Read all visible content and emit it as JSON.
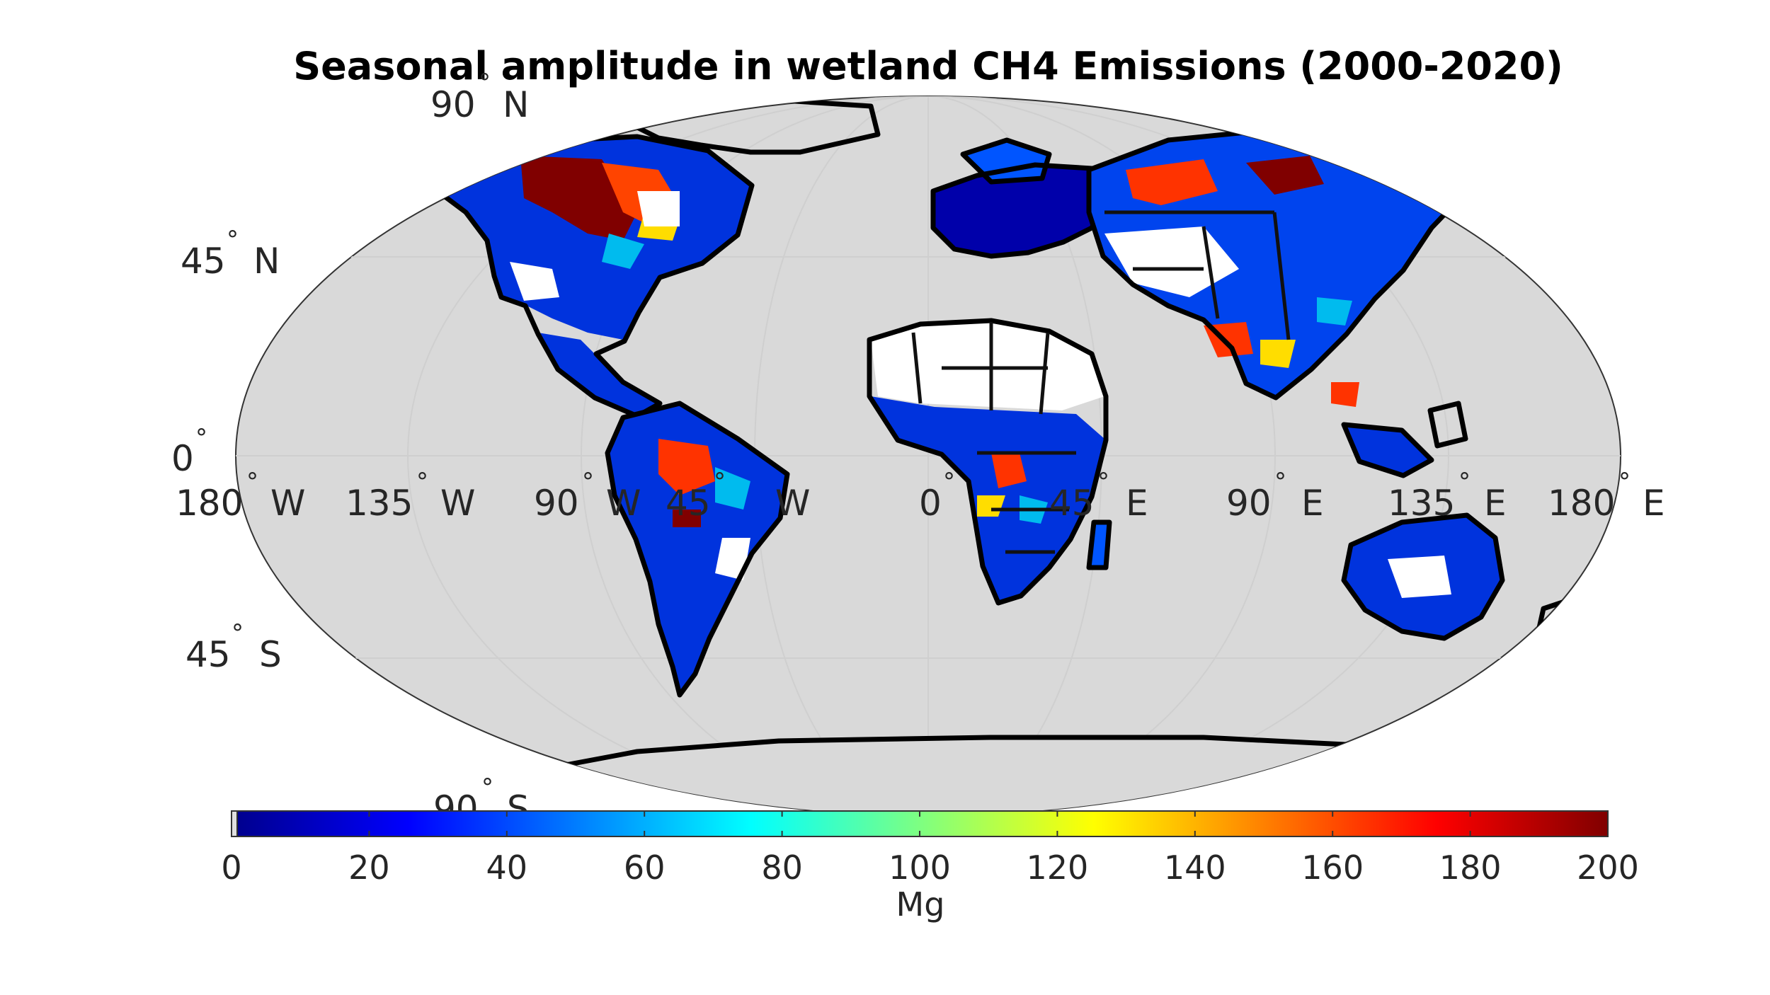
{
  "title": "Seasonal amplitude in wetland CH4 Emissions (2000-2020)",
  "projection": "robinson",
  "colors": {
    "ocean": "#d9d9d9",
    "land_low": "#00008f",
    "land_mid": "#0044ff",
    "high": "#ff2200",
    "max": "#800000",
    "coastline": "#000000"
  },
  "latitude_labels": [
    {
      "value": "90",
      "hemisphere": "N"
    },
    {
      "value": "45",
      "hemisphere": "N"
    },
    {
      "value": "0",
      "hemisphere": ""
    },
    {
      "value": "45",
      "hemisphere": "S"
    },
    {
      "value": "90",
      "hemisphere": "S"
    }
  ],
  "longitude_labels": [
    {
      "value": "180",
      "hemisphere": "W"
    },
    {
      "value": "135",
      "hemisphere": "W"
    },
    {
      "value": "90",
      "hemisphere": "W"
    },
    {
      "value": "45",
      "hemisphere": "W"
    },
    {
      "value": "0",
      "hemisphere": ""
    },
    {
      "value": "45",
      "hemisphere": "E"
    },
    {
      "value": "90",
      "hemisphere": "E"
    },
    {
      "value": "135",
      "hemisphere": "E"
    },
    {
      "value": "180",
      "hemisphere": "E"
    }
  ],
  "colorbar": {
    "label": "Mg",
    "colormap": "jet",
    "min": 0,
    "max": 200,
    "ticks": [
      "0",
      "20",
      "40",
      "60",
      "80",
      "100",
      "120",
      "140",
      "160",
      "180",
      "200"
    ]
  }
}
